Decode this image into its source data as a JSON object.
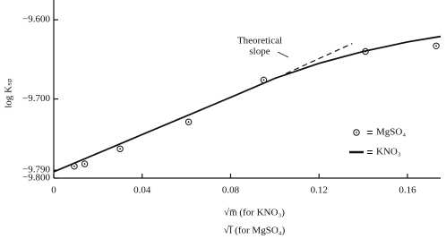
{
  "chart_data": {
    "type": "scatter",
    "x_label": "√m̅  (for KNO₃)",
    "x_label_2": "√I̅  (for MgSO₄)",
    "y_label": "log Kₛₚ",
    "annotation": [
      "Theoretical",
      "slope"
    ],
    "xlim": [
      0,
      0.175
    ],
    "ylim": [
      -9.8,
      -9.575
    ],
    "xticks": [
      0,
      0.04,
      0.08,
      0.12,
      0.16
    ],
    "yticks": [
      {
        "value": -9.6,
        "label": "−9.600"
      },
      {
        "value": -9.7,
        "label": "−9.700"
      },
      {
        "value": -9.79,
        "label": "−9.790"
      },
      {
        "value": -9.8,
        "label": "−9.800"
      }
    ],
    "series": [
      {
        "name": "MgSO₄",
        "color": "#111111",
        "style": "points",
        "x": [
          0.0093,
          0.014,
          0.03,
          0.061,
          0.095,
          0.141,
          0.173
        ],
        "values": [
          -9.785,
          -9.782,
          -9.763,
          -9.729,
          -9.676,
          -9.64,
          -9.633
        ]
      },
      {
        "name": "KNO₃",
        "color": "#111111",
        "style": "line",
        "x": [
          0,
          0.04,
          0.08,
          0.1,
          0.12,
          0.14,
          0.16,
          0.175
        ],
        "values": [
          -9.792,
          -9.745,
          -9.698,
          -9.674,
          -9.655,
          -9.64,
          -9.628,
          -9.621
        ]
      },
      {
        "color": "#111111",
        "style": "dashed",
        "x": [
          0.105,
          0.135
        ],
        "values": [
          -9.668,
          -9.63
        ]
      }
    ]
  }
}
